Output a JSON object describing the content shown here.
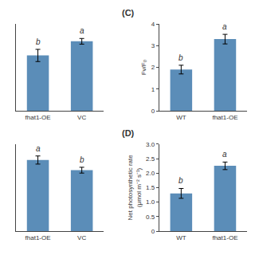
{
  "chart_data": [
    {
      "type": "bar",
      "categories": [
        "fhat1-OE",
        "VC"
      ],
      "values": [
        2.55,
        3.2
      ],
      "errors": [
        0.28,
        0.13
      ],
      "annotations": [
        "b",
        "a"
      ],
      "ylim": [
        0,
        4
      ],
      "tick_labels": "x",
      "color": "#5B8DB8",
      "grid": false
    },
    {
      "type": "bar",
      "title": "(C)",
      "categories": [
        "WT",
        "fhat1-OE"
      ],
      "values": [
        1.9,
        3.3
      ],
      "errors": [
        0.2,
        0.22
      ],
      "annotations": [
        "b",
        "a"
      ],
      "ylabel": "Fv/F₀",
      "ylim": [
        0,
        4
      ],
      "yticks": [
        0,
        1,
        2,
        3,
        4
      ],
      "color": "#5B8DB8",
      "grid": false
    },
    {
      "type": "bar",
      "categories": [
        "fhat1-OE",
        "VC"
      ],
      "values": [
        2.45,
        2.1
      ],
      "errors": [
        0.14,
        0.1
      ],
      "annotations": [
        "a",
        "b"
      ],
      "ylim": [
        0,
        3
      ],
      "tick_labels": "x",
      "color": "#5B8DB8",
      "grid": false
    },
    {
      "type": "bar",
      "title": "(D)",
      "categories": [
        "WT",
        "fhat1-OE"
      ],
      "values": [
        1.3,
        2.25
      ],
      "errors": [
        0.17,
        0.13
      ],
      "annotations": [
        "b",
        "a"
      ],
      "ylabel": "Net photosynthetic rate\n(μmol m⁻² s⁻¹)",
      "ylim": [
        0,
        3.0
      ],
      "yticks": [
        0.0,
        {
          "value": 0.5,
          "label": "0.5"
        },
        {
          "value": 1.0,
          "label": "1.0"
        },
        {
          "value": 1.5,
          "label": "1.5"
        },
        {
          "value": 2.0,
          "label": "2.0"
        },
        {
          "value": 2.5,
          "label": "2.5"
        },
        {
          "value": 3.0,
          "label": "3.0"
        }
      ],
      "color": "#5B8DB8",
      "grid": false
    }
  ]
}
